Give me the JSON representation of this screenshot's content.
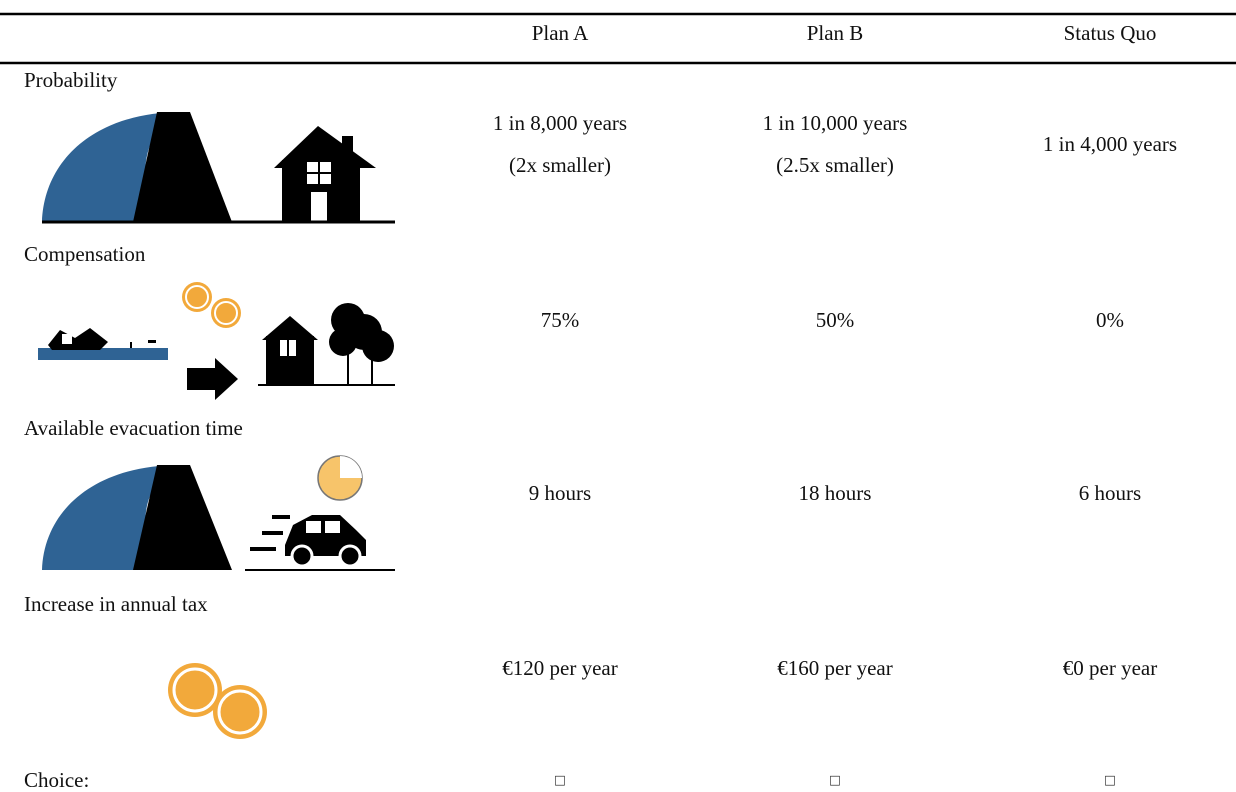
{
  "header": {
    "columns": [
      "Plan A",
      "Plan B",
      "Status Quo"
    ]
  },
  "rows": [
    {
      "label": "Probability",
      "values": [
        [
          "1 in 8,000 years",
          "(2x smaller)"
        ],
        [
          "1 in 10,000 years",
          "(2.5x smaller)"
        ],
        [
          "1 in 4,000 years"
        ]
      ]
    },
    {
      "label": "Compensation",
      "values": [
        [
          "75%"
        ],
        [
          "50%"
        ],
        [
          "0%"
        ]
      ]
    },
    {
      "label": "Available evacuation time",
      "values": [
        [
          "9 hours"
        ],
        [
          "18 hours"
        ],
        [
          "6 hours"
        ]
      ]
    },
    {
      "label": "Increase in annual tax",
      "values": [
        [
          "€120 per year"
        ],
        [
          "€160 per year"
        ],
        [
          "€0 per year"
        ]
      ]
    }
  ],
  "choice": {
    "label": "Choice:",
    "options": [
      "□",
      "□",
      "□"
    ]
  }
}
